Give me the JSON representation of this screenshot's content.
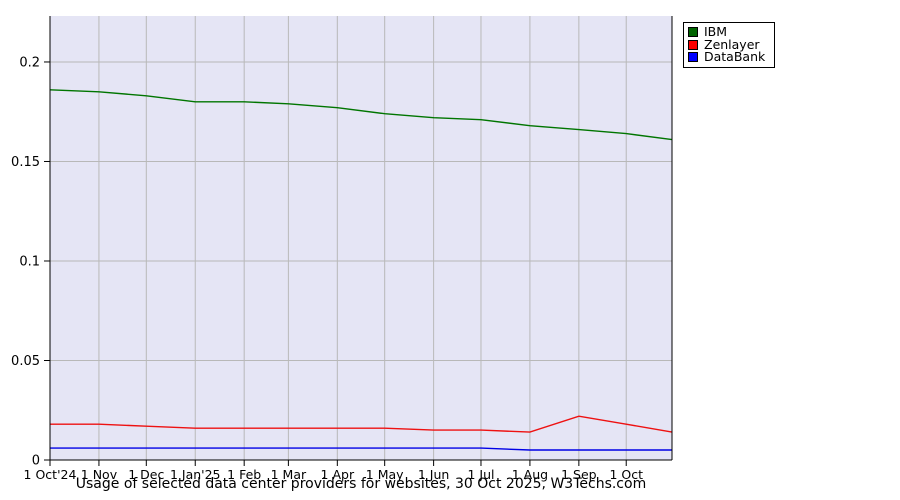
{
  "caption": "Usage of selected data center providers for websites, 30 Oct 2025, W3Techs.com",
  "chart_data": {
    "type": "line",
    "title": "Usage of selected data center providers for websites, 30 Oct 2025, W3Techs.com",
    "x_tick_labels": [
      "1 Oct'24",
      "1 Nov",
      "1 Dec",
      "1 Jan'25",
      "1 Feb",
      "1 Mar",
      "1 Apr",
      "1 May",
      "1 Jun",
      "1 Jul",
      "1 Aug",
      "1 Sep",
      "1 Oct"
    ],
    "x_tick_days": [
      0,
      31,
      61,
      92,
      123,
      151,
      182,
      212,
      243,
      273,
      304,
      335,
      365
    ],
    "x_days": [
      0,
      31,
      61,
      92,
      123,
      151,
      182,
      212,
      243,
      273,
      304,
      335,
      365,
      394
    ],
    "x_total_days": 394,
    "y_tick_labels": [
      "0",
      "0.05",
      "0.1",
      "0.15",
      "0.2"
    ],
    "y_ticks": [
      0,
      0.05,
      0.1,
      0.15,
      0.2
    ],
    "ylim": [
      0,
      0.2231
    ],
    "grid": true,
    "legend_position": "top-right-outside",
    "plot_bg": "#e5e5f5",
    "grid_color": "#b8b8b8",
    "axis_color": "#000000",
    "series": [
      {
        "name": "IBM",
        "color": "#006400",
        "line_color": "#007500",
        "values": [
          0.186,
          0.185,
          0.183,
          0.18,
          0.18,
          0.179,
          0.177,
          0.174,
          0.172,
          0.171,
          0.168,
          0.166,
          0.164,
          0.161
        ]
      },
      {
        "name": "Zenlayer",
        "color": "#ff0000",
        "line_color": "#ee1111",
        "values": [
          0.018,
          0.018,
          0.017,
          0.016,
          0.016,
          0.016,
          0.016,
          0.016,
          0.015,
          0.015,
          0.014,
          0.022,
          0.018,
          0.014
        ]
      },
      {
        "name": "DataBank",
        "color": "#0000ff",
        "line_color": "#0000e6",
        "values": [
          0.006,
          0.006,
          0.006,
          0.006,
          0.006,
          0.006,
          0.006,
          0.006,
          0.006,
          0.006,
          0.005,
          0.005,
          0.005,
          0.005
        ]
      }
    ]
  }
}
